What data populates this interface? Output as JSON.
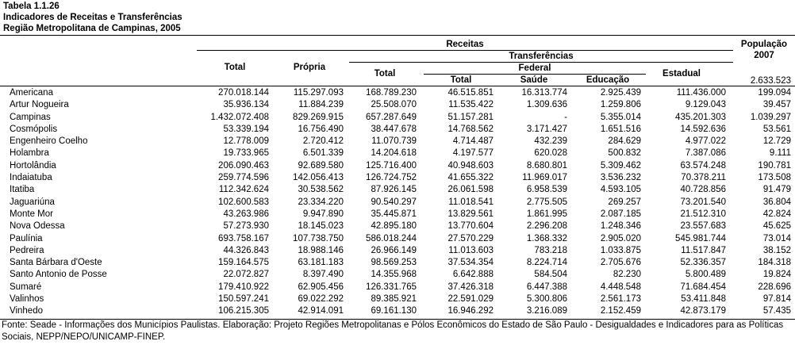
{
  "title": {
    "line1": "Tabela 1.1.26",
    "line2": "Indicadores de Receitas e Transferências",
    "line3": "Região Metropolitana de Campinas, 2005"
  },
  "headers": {
    "receitas": "Receitas",
    "populacao": "População",
    "populacao_year": "2007",
    "transferencias": "Transferências",
    "federal": "Federal",
    "total": "Total",
    "propria": "Própria",
    "transf_total": "Total",
    "federal_total": "Total",
    "saude": "Saúde",
    "educacao": "Educação",
    "estadual": "Estadual",
    "region_population": "2.633.523"
  },
  "rows": [
    {
      "name": "Americana",
      "total": "270.018.144",
      "propria": "115.297.093",
      "transf_total": "168.789.230",
      "fed_total": "46.515.851",
      "saude": "16.313.774",
      "educacao": "2.925.439",
      "estadual": "111.436.000",
      "populacao": "199.094"
    },
    {
      "name": "Artur Nogueira",
      "total": "35.936.134",
      "propria": "11.884.239",
      "transf_total": "25.508.070",
      "fed_total": "11.535.422",
      "saude": "1.309.636",
      "educacao": "1.259.806",
      "estadual": "9.129.043",
      "populacao": "39.457"
    },
    {
      "name": "Campinas",
      "total": "1.432.072.408",
      "propria": "829.269.915",
      "transf_total": "657.287.649",
      "fed_total": "51.157.281",
      "saude": "-",
      "educacao": "5.355.014",
      "estadual": "435.201.303",
      "populacao": "1.039.297"
    },
    {
      "name": "Cosmópolis",
      "total": "53.339.194",
      "propria": "16.756.490",
      "transf_total": "38.447.678",
      "fed_total": "14.768.562",
      "saude": "3.171.427",
      "educacao": "1.651.516",
      "estadual": "14.592.636",
      "populacao": "53.561"
    },
    {
      "name": "Engenheiro Coelho",
      "total": "12.778.009",
      "propria": "2.720.412",
      "transf_total": "11.070.739",
      "fed_total": "4.714.487",
      "saude": "432.239",
      "educacao": "284.629",
      "estadual": "4.977.022",
      "populacao": "12.729"
    },
    {
      "name": "Holambra",
      "total": "19.733.965",
      "propria": "6.501.339",
      "transf_total": "14.204.618",
      "fed_total": "4.197.577",
      "saude": "620.028",
      "educacao": "500.832",
      "estadual": "7.387.086",
      "populacao": "9.111"
    },
    {
      "name": "Hortolândia",
      "total": "206.090.463",
      "propria": "92.689.580",
      "transf_total": "125.716.400",
      "fed_total": "40.948.603",
      "saude": "8.680.801",
      "educacao": "5.309.462",
      "estadual": "63.574.248",
      "populacao": "190.781"
    },
    {
      "name": "Indaiatuba",
      "total": "259.774.596",
      "propria": "142.056.413",
      "transf_total": "126.724.752",
      "fed_total": "41.655.322",
      "saude": "11.969.017",
      "educacao": "3.536.232",
      "estadual": "70.378.211",
      "populacao": "173.508"
    },
    {
      "name": "Itatiba",
      "total": "112.342.624",
      "propria": "30.538.562",
      "transf_total": "87.926.145",
      "fed_total": "26.061.598",
      "saude": "6.958.539",
      "educacao": "4.593.105",
      "estadual": "40.728.856",
      "populacao": "91.479"
    },
    {
      "name": "Jaguariúna",
      "total": "102.600.583",
      "propria": "23.334.220",
      "transf_total": "90.540.297",
      "fed_total": "11.018.541",
      "saude": "2.775.505",
      "educacao": "269.257",
      "estadual": "73.201.540",
      "populacao": "36.804"
    },
    {
      "name": "Monte Mor",
      "total": "43.263.986",
      "propria": "9.947.890",
      "transf_total": "35.445.871",
      "fed_total": "13.829.561",
      "saude": "1.861.995",
      "educacao": "2.087.185",
      "estadual": "21.512.310",
      "populacao": "42.824"
    },
    {
      "name": "Nova Odessa",
      "total": "57.273.930",
      "propria": "18.145.023",
      "transf_total": "42.895.180",
      "fed_total": "13.770.604",
      "saude": "2.296.208",
      "educacao": "1.248.346",
      "estadual": "23.557.683",
      "populacao": "45.625"
    },
    {
      "name": "Paulínia",
      "total": "693.758.167",
      "propria": "107.738.750",
      "transf_total": "586.018.244",
      "fed_total": "27.570.229",
      "saude": "1.368.332",
      "educacao": "2.905.020",
      "estadual": "545.981.744",
      "populacao": "73.014"
    },
    {
      "name": "Pedreira",
      "total": "44.326.843",
      "propria": "18.988.146",
      "transf_total": "26.966.149",
      "fed_total": "11.013.603",
      "saude": "783.218",
      "educacao": "1.033.875",
      "estadual": "11.517.847",
      "populacao": "38.152"
    },
    {
      "name": "Santa Bárbara d'Oeste",
      "total": "159.164.575",
      "propria": "63.181.183",
      "transf_total": "98.569.253",
      "fed_total": "37.534.354",
      "saude": "8.224.714",
      "educacao": "2.705.676",
      "estadual": "52.336.357",
      "populacao": "184.318"
    },
    {
      "name": "Santo Antonio de Posse",
      "total": "22.072.827",
      "propria": "8.397.490",
      "transf_total": "14.355.968",
      "fed_total": "6.642.888",
      "saude": "584.504",
      "educacao": "82.230",
      "estadual": "5.800.489",
      "populacao": "19.824"
    },
    {
      "name": "Sumaré",
      "total": "179.410.922",
      "propria": "62.905.456",
      "transf_total": "126.331.765",
      "fed_total": "37.426.318",
      "saude": "6.447.388",
      "educacao": "4.448.548",
      "estadual": "71.684.454",
      "populacao": "228.696"
    },
    {
      "name": "Valinhos",
      "total": "150.597.241",
      "propria": "69.022.292",
      "transf_total": "89.385.921",
      "fed_total": "22.591.029",
      "saude": "5.300.806",
      "educacao": "2.561.173",
      "estadual": "53.411.848",
      "populacao": "97.814"
    },
    {
      "name": "Vinhedo",
      "total": "106.215.305",
      "propria": "42.914.091",
      "transf_total": "69.161.130",
      "fed_total": "16.946.292",
      "saude": "3.216.089",
      "educacao": "2.152.459",
      "estadual": "42.873.179",
      "populacao": "57.435"
    }
  ],
  "source": "Fonte: Seade - Informações dos Municípios Paulistas. Elaboração: Projeto Regiões Metropolitanas e Pólos Econômicos do Estado de São Paulo - Desigualdades e Indicadores para as Políticas Sociais, NEPP/NEPO/UNICAMP-FINEP."
}
